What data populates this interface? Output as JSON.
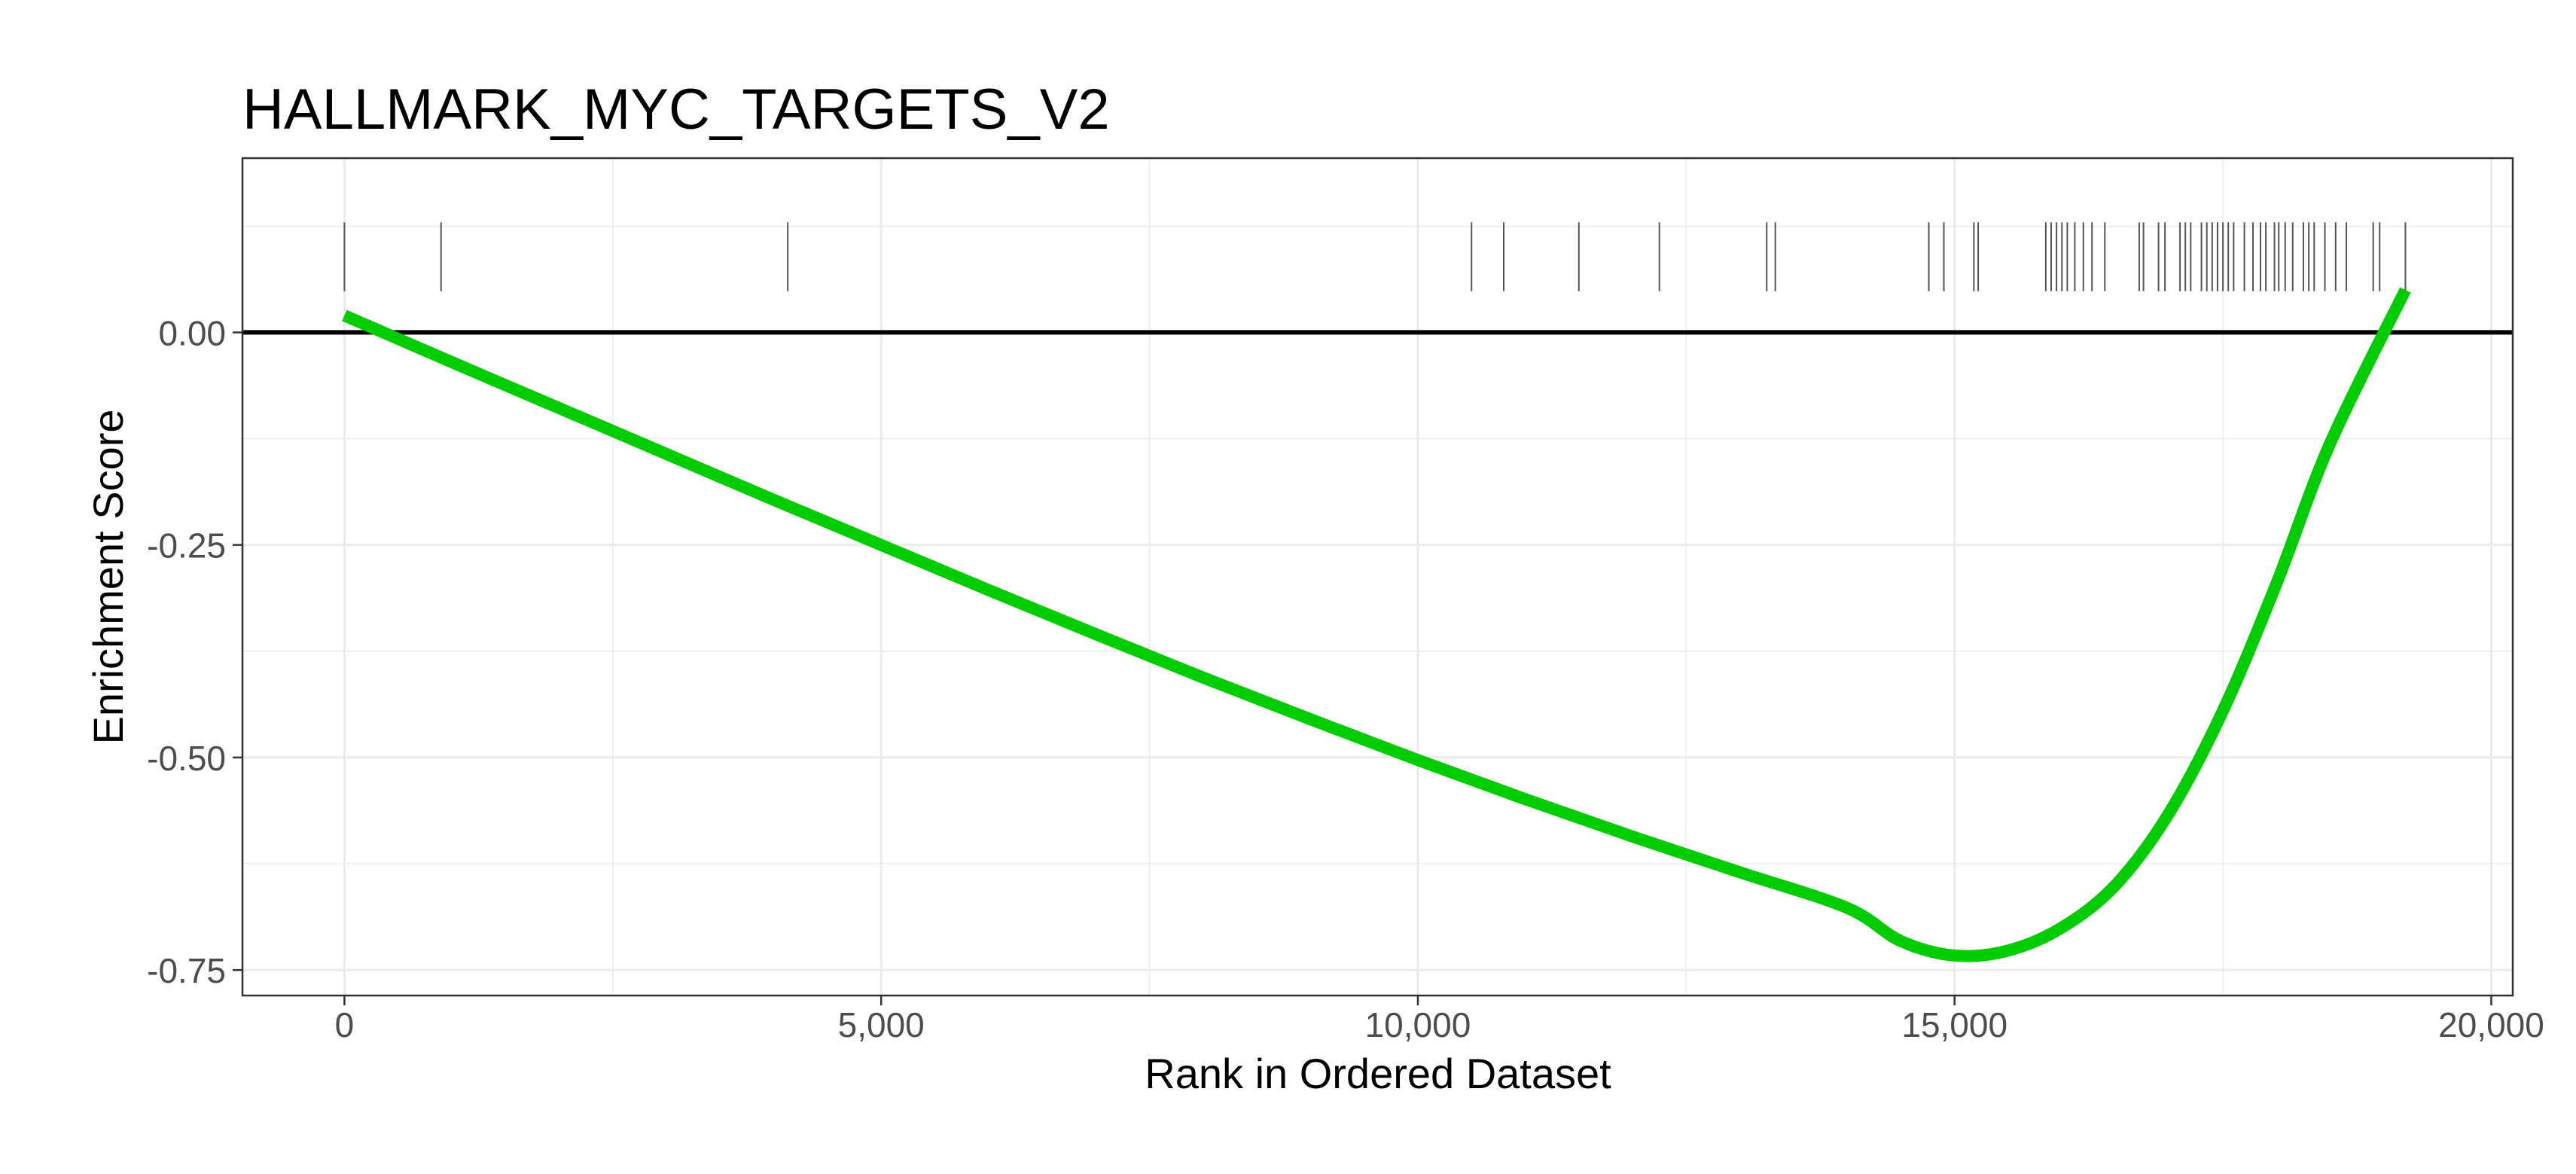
{
  "chart_data": {
    "type": "line",
    "title": "HALLMARK_MYC_TARGETS_V2",
    "xlabel": "Rank in Ordered Dataset",
    "ylabel": "Enrichment Score",
    "xlim": [
      -950,
      20200
    ],
    "ylim": [
      -0.78,
      0.205
    ],
    "x_ticks": [
      0,
      5000,
      10000,
      15000,
      20000
    ],
    "x_tick_labels": [
      "0",
      "5,000",
      "10,000",
      "15,000",
      "20,000"
    ],
    "y_ticks": [
      0.0,
      -0.25,
      -0.5,
      -0.75
    ],
    "y_tick_labels": [
      "0.00",
      "-0.25",
      "-0.50",
      "-0.75"
    ],
    "grid": true,
    "reference_line_y": 0.0,
    "series": [
      {
        "color": "#00cc00",
        "x": [
          0,
          1000,
          2000,
          3000,
          4000,
          5000,
          6000,
          7000,
          8000,
          9000,
          10000,
          11000,
          12000,
          13000,
          14000,
          14500,
          15000,
          15500,
          16000,
          16500,
          17000,
          17500,
          18000,
          18500,
          19200
        ],
        "y": [
          0.02,
          -0.035,
          -0.089,
          -0.143,
          -0.197,
          -0.25,
          -0.303,
          -0.355,
          -0.406,
          -0.455,
          -0.503,
          -0.549,
          -0.593,
          -0.635,
          -0.677,
          -0.716,
          -0.733,
          -0.727,
          -0.7,
          -0.65,
          -0.565,
          -0.445,
          -0.295,
          -0.13,
          0.05
        ]
      }
    ],
    "gene_hits": [
      0,
      900,
      4130,
      10500,
      10800,
      11500,
      12250,
      13250,
      13330,
      14760,
      14900,
      15180,
      15220,
      15850,
      15900,
      15950,
      16000,
      16050,
      16120,
      16200,
      16280,
      16400,
      16720,
      16760,
      16900,
      16960,
      17100,
      17150,
      17200,
      17300,
      17350,
      17400,
      17450,
      17500,
      17550,
      17600,
      17700,
      17780,
      17850,
      17900,
      17980,
      18020,
      18080,
      18150,
      18250,
      18300,
      18350,
      18450,
      18550,
      18650,
      18900,
      18960,
      19200
    ],
    "colors": {
      "line": "#00cc00",
      "hit_marks": "#555555",
      "zero_line": "#000000",
      "grid": "#ebebeb",
      "panel_border": "#333333"
    }
  }
}
